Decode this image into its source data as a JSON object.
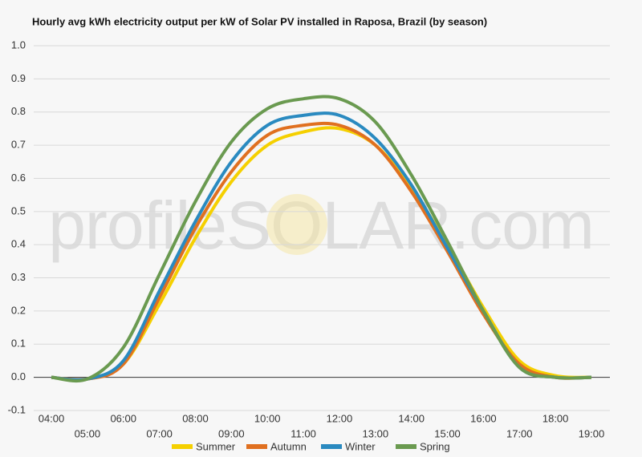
{
  "chart_data": {
    "type": "line",
    "title": "Hourly avg kWh electricity output per kW of Solar PV installed in Raposa, Brazil (by season)",
    "watermark": "profileSOLAR.com",
    "categories": [
      "04:00",
      "05:00",
      "06:00",
      "07:00",
      "08:00",
      "09:00",
      "10:00",
      "11:00",
      "12:00",
      "13:00",
      "14:00",
      "15:00",
      "16:00",
      "17:00",
      "18:00",
      "19:00"
    ],
    "series": [
      {
        "name": "Summer",
        "color": "#f5d000",
        "values": [
          0,
          -0.005,
          0.04,
          0.22,
          0.42,
          0.59,
          0.7,
          0.74,
          0.75,
          0.7,
          0.57,
          0.4,
          0.21,
          0.05,
          0.005,
          0
        ]
      },
      {
        "name": "Autumn",
        "color": "#e07020",
        "values": [
          0,
          -0.005,
          0.04,
          0.24,
          0.45,
          0.62,
          0.73,
          0.76,
          0.76,
          0.7,
          0.56,
          0.38,
          0.19,
          0.04,
          0,
          0
        ]
      },
      {
        "name": "Winter",
        "color": "#2a8ac0",
        "values": [
          0,
          -0.005,
          0.05,
          0.26,
          0.47,
          0.65,
          0.76,
          0.79,
          0.79,
          0.72,
          0.58,
          0.39,
          0.2,
          0.03,
          0,
          0
        ]
      },
      {
        "name": "Spring",
        "color": "#6a9a50",
        "values": [
          0,
          -0.005,
          0.09,
          0.31,
          0.53,
          0.71,
          0.81,
          0.84,
          0.84,
          0.77,
          0.61,
          0.41,
          0.2,
          0.03,
          0,
          0
        ]
      }
    ],
    "ylim": [
      -0.1,
      1
    ],
    "yticks": [
      {
        "value": 1,
        "label": "1.0"
      },
      0.9,
      0.8,
      0.7,
      0.6,
      0.5,
      0.4,
      0.3,
      0.2,
      0.1,
      {
        "value": 0,
        "label": "0.0"
      },
      -0.1
    ],
    "grid": true,
    "legend": "bottom"
  }
}
